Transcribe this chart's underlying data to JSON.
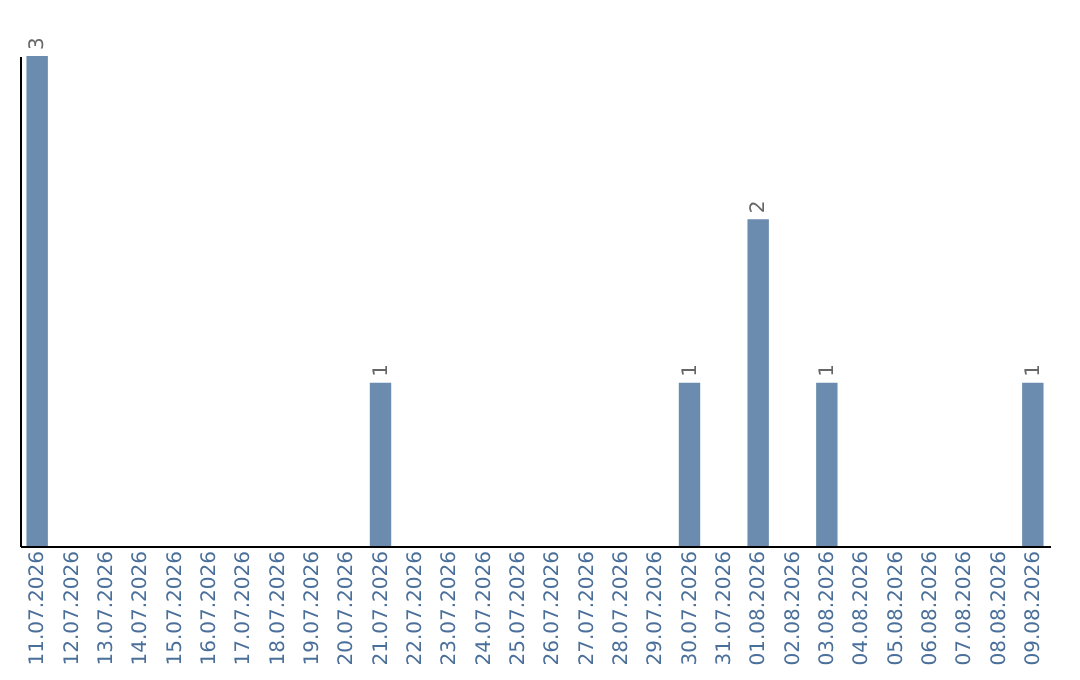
{
  "chart_data": {
    "type": "bar",
    "categories": [
      "11.07.2026",
      "12.07.2026",
      "13.07.2026",
      "14.07.2026",
      "15.07.2026",
      "16.07.2026",
      "17.07.2026",
      "18.07.2026",
      "19.07.2026",
      "20.07.2026",
      "21.07.2026",
      "22.07.2026",
      "23.07.2026",
      "24.07.2026",
      "25.07.2026",
      "26.07.2026",
      "27.07.2026",
      "28.07.2026",
      "29.07.2026",
      "30.07.2026",
      "31.07.2026",
      "01.08.2026",
      "02.08.2026",
      "03.08.2026",
      "04.08.2026",
      "05.08.2026",
      "06.08.2026",
      "07.08.2026",
      "08.08.2026",
      "09.08.2026"
    ],
    "values": [
      3,
      0,
      0,
      0,
      0,
      0,
      0,
      0,
      0,
      0,
      1,
      0,
      0,
      0,
      0,
      0,
      0,
      0,
      0,
      1,
      0,
      2,
      0,
      1,
      0,
      0,
      0,
      0,
      0,
      1
    ],
    "value_labels": [
      "3",
      null,
      null,
      null,
      null,
      null,
      null,
      null,
      null,
      null,
      "1",
      null,
      null,
      null,
      null,
      null,
      null,
      null,
      null,
      "1",
      null,
      "2",
      null,
      "1",
      null,
      null,
      null,
      null,
      null,
      "1"
    ],
    "color": "#6b8cae",
    "grid": false
  }
}
